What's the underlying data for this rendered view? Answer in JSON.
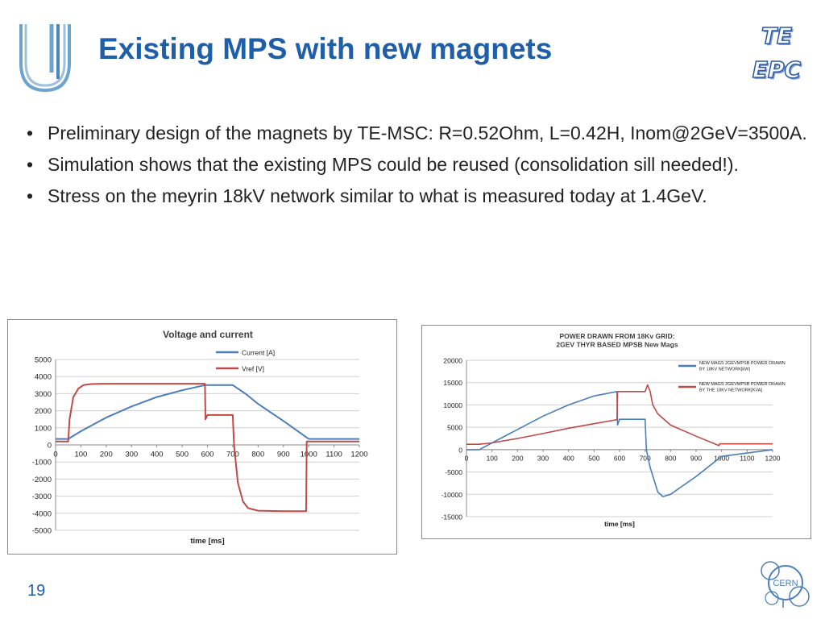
{
  "slide": {
    "title": "Existing MPS with new magnets",
    "org_label_1": "TE",
    "org_label_2": "EPC",
    "bullets": [
      "Preliminary design of the magnets by TE-MSC: R=0.52Ohm, L=0.42H, Inom@2GeV=3500A.",
      "Simulation shows that the existing MPS could be reused (consolidation sill needed!).",
      "Stress on the meyrin 18kV network similar to what is measured today at 1.4GeV."
    ],
    "bullet_char": "•",
    "page_number": "19",
    "cern_logo_text": "CERN",
    "colors": {
      "title": "#1f5ea8",
      "series_blue": "#4a7ebb",
      "series_red": "#be4b48"
    }
  },
  "chart_data": [
    {
      "type": "line",
      "title": "Voltage and current",
      "xlabel": "time [ms]",
      "ylabel": "",
      "xlim": [
        0,
        1200
      ],
      "ylim": [
        -5000,
        5000
      ],
      "xticks": [
        0,
        100,
        200,
        300,
        400,
        500,
        600,
        700,
        800,
        900,
        1000,
        1100,
        1200
      ],
      "yticks": [
        5000,
        4000,
        3000,
        2000,
        1000,
        0,
        -1000,
        -2000,
        -3000,
        -4000,
        -5000
      ],
      "grid": "horizontal",
      "legend_position": "top-right",
      "series": [
        {
          "name": "Current [A]",
          "color": "#4a7ebb",
          "x": [
            0,
            50,
            100,
            200,
            300,
            400,
            500,
            590,
            700,
            750,
            800,
            900,
            1000,
            1200
          ],
          "y": [
            350,
            350,
            800,
            1600,
            2250,
            2800,
            3200,
            3500,
            3500,
            3000,
            2400,
            1400,
            350,
            350
          ]
        },
        {
          "name": "Vref [V]",
          "color": "#be4b48",
          "x": [
            0,
            50,
            55,
            70,
            90,
            110,
            140,
            200,
            300,
            400,
            500,
            590,
            592,
            600,
            700,
            705,
            720,
            740,
            760,
            800,
            900,
            990,
            992,
            1000,
            1200
          ],
          "y": [
            200,
            200,
            1500,
            2800,
            3300,
            3500,
            3560,
            3580,
            3580,
            3580,
            3580,
            3580,
            1500,
            1750,
            1750,
            0,
            -2200,
            -3300,
            -3700,
            -3850,
            -3880,
            -3880,
            200,
            200,
            200
          ]
        }
      ]
    },
    {
      "type": "line",
      "title": "POWER DRAWN FROM 18Kv GRID:",
      "subtitle": "2GEV THYR BASED MPSB New Mags",
      "xlabel": "time [ms]",
      "ylabel": "",
      "xlim": [
        0,
        1200
      ],
      "ylim": [
        -15000,
        20000
      ],
      "xticks": [
        0,
        100,
        200,
        300,
        400,
        500,
        600,
        700,
        800,
        900,
        1000,
        1100,
        1200
      ],
      "yticks": [
        20000,
        15000,
        10000,
        5000,
        0,
        -5000,
        -10000,
        -15000
      ],
      "grid": "horizontal",
      "legend_position": "top-right",
      "series": [
        {
          "name": "NEW MAGS 2GEVMPSB POWER DRAWN BY 18KV NETWORK[kW]",
          "color": "#4a7ebb",
          "x": [
            0,
            50,
            100,
            200,
            300,
            400,
            500,
            590,
            592,
            600,
            700,
            705,
            720,
            750,
            770,
            800,
            900,
            1000,
            1200
          ],
          "y": [
            0,
            0,
            1500,
            4500,
            7500,
            10000,
            12000,
            13000,
            5500,
            6800,
            6800,
            0,
            -4000,
            -9500,
            -10500,
            -10000,
            -6000,
            -1500,
            0
          ]
        },
        {
          "name": "NEW MAGS 2GEVMPSB POWER DRAWN BY THE 18KV NETWORK[KVA]",
          "color": "#be4b48",
          "x": [
            0,
            50,
            100,
            200,
            300,
            400,
            500,
            590,
            592,
            600,
            700,
            710,
            720,
            730,
            750,
            800,
            900,
            990,
            992,
            1000,
            1200
          ],
          "y": [
            1200,
            1200,
            1500,
            2500,
            3600,
            4800,
            5800,
            6700,
            13000,
            13000,
            13000,
            14500,
            13000,
            10000,
            8000,
            5500,
            3000,
            900,
            1300,
            1300,
            1300
          ]
        }
      ]
    }
  ]
}
